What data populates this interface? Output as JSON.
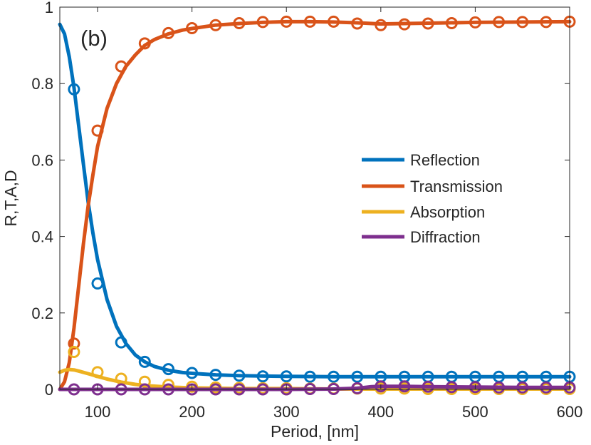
{
  "chart_data": {
    "type": "line",
    "panel_label": "(b)",
    "xlabel": "Period, [nm]",
    "ylabel": "R,T,A,D",
    "xlim": [
      60,
      600
    ],
    "ylim": [
      0,
      1
    ],
    "xticks": [
      100,
      200,
      300,
      400,
      500,
      600
    ],
    "xtick_labels": [
      "100",
      "200",
      "300",
      "400",
      "500",
      "600"
    ],
    "yticks": [
      0,
      0.2,
      0.4,
      0.6,
      0.8,
      1
    ],
    "ytick_labels": [
      "0",
      "0.2",
      "0.4",
      "0.6",
      "0.8",
      "1"
    ],
    "grid": false,
    "legend_position": "center-right",
    "series": [
      {
        "name": "Reflection",
        "color": "#0072BD",
        "curve": {
          "x": [
            60,
            65,
            70,
            75,
            80,
            85,
            90,
            95,
            100,
            110,
            120,
            130,
            140,
            150,
            160,
            175,
            190,
            200,
            225,
            250,
            300,
            350,
            400,
            450,
            500,
            550,
            600
          ],
          "y": [
            0.955,
            0.93,
            0.87,
            0.79,
            0.69,
            0.59,
            0.49,
            0.41,
            0.34,
            0.235,
            0.165,
            0.12,
            0.09,
            0.072,
            0.06,
            0.05,
            0.044,
            0.042,
            0.038,
            0.036,
            0.034,
            0.033,
            0.033,
            0.033,
            0.033,
            0.033,
            0.033
          ]
        },
        "points": {
          "x": [
            75,
            100,
            125,
            150,
            175,
            200,
            225,
            250,
            275,
            300,
            325,
            350,
            375,
            400,
            425,
            450,
            475,
            500,
            525,
            550,
            575,
            600
          ],
          "y": [
            0.785,
            0.277,
            0.123,
            0.072,
            0.053,
            0.043,
            0.038,
            0.036,
            0.034,
            0.034,
            0.033,
            0.033,
            0.033,
            0.033,
            0.033,
            0.033,
            0.033,
            0.033,
            0.033,
            0.033,
            0.033,
            0.033
          ]
        }
      },
      {
        "name": "Transmission",
        "color": "#D95319",
        "curve": {
          "x": [
            60,
            65,
            70,
            75,
            80,
            85,
            90,
            95,
            100,
            110,
            120,
            130,
            140,
            150,
            160,
            175,
            190,
            200,
            225,
            250,
            275,
            300,
            325,
            350,
            375,
            400,
            425,
            450,
            500,
            550,
            600
          ],
          "y": [
            0.0,
            0.02,
            0.07,
            0.16,
            0.27,
            0.38,
            0.48,
            0.56,
            0.635,
            0.735,
            0.8,
            0.845,
            0.875,
            0.9,
            0.915,
            0.93,
            0.94,
            0.944,
            0.953,
            0.957,
            0.96,
            0.962,
            0.962,
            0.961,
            0.959,
            0.956,
            0.957,
            0.958,
            0.96,
            0.961,
            0.962
          ]
        },
        "points": {
          "x": [
            75,
            100,
            125,
            150,
            175,
            200,
            225,
            250,
            275,
            300,
            325,
            350,
            375,
            400,
            425,
            450,
            475,
            500,
            525,
            550,
            575,
            600
          ],
          "y": [
            0.12,
            0.677,
            0.845,
            0.905,
            0.932,
            0.945,
            0.953,
            0.958,
            0.961,
            0.962,
            0.962,
            0.962,
            0.957,
            0.953,
            0.955,
            0.957,
            0.958,
            0.96,
            0.961,
            0.961,
            0.961,
            0.962
          ]
        }
      },
      {
        "name": "Absorption",
        "color": "#EDB120",
        "curve": {
          "x": [
            60,
            65,
            70,
            75,
            80,
            90,
            100,
            110,
            125,
            140,
            150,
            175,
            200,
            225,
            250,
            300,
            350,
            400,
            450,
            500,
            550,
            600
          ],
          "y": [
            0.045,
            0.05,
            0.052,
            0.051,
            0.048,
            0.041,
            0.034,
            0.027,
            0.019,
            0.013,
            0.01,
            0.006,
            0.004,
            0.003,
            0.002,
            0.002,
            0.001,
            0.001,
            0.001,
            0.001,
            0.001,
            0.001
          ]
        },
        "points": {
          "x": [
            75,
            100,
            125,
            150,
            175,
            200,
            225,
            250,
            275,
            300,
            325,
            350,
            375,
            400,
            425,
            450,
            475,
            500,
            525,
            550,
            575,
            600
          ],
          "y": [
            0.098,
            0.045,
            0.028,
            0.02,
            0.012,
            0.007,
            0.005,
            0.004,
            0.003,
            0.003,
            0.002,
            0.002,
            0.002,
            0.002,
            0.002,
            0.001,
            0.001,
            0.001,
            0.001,
            0.001,
            0.001,
            0.001
          ]
        }
      },
      {
        "name": "Diffraction",
        "color": "#7E2F8E",
        "curve": {
          "x": [
            60,
            100,
            200,
            300,
            350,
            375,
            390,
            400,
            425,
            450,
            500,
            550,
            600
          ],
          "y": [
            0.0,
            0.0,
            0.0,
            0.0,
            0.001,
            0.003,
            0.007,
            0.008,
            0.008,
            0.007,
            0.006,
            0.005,
            0.005
          ]
        },
        "points": {
          "x": [
            75,
            100,
            125,
            150,
            175,
            200,
            225,
            250,
            275,
            300,
            325,
            350,
            375,
            400,
            425,
            450,
            475,
            500,
            525,
            550,
            575,
            600
          ],
          "y": [
            0.0,
            0.0,
            0.0,
            0.0,
            0.0,
            0.0,
            0.0,
            0.0,
            0.0,
            0.0,
            0.001,
            0.001,
            0.003,
            0.008,
            0.008,
            0.007,
            0.006,
            0.006,
            0.005,
            0.005,
            0.005,
            0.005
          ]
        }
      }
    ]
  }
}
